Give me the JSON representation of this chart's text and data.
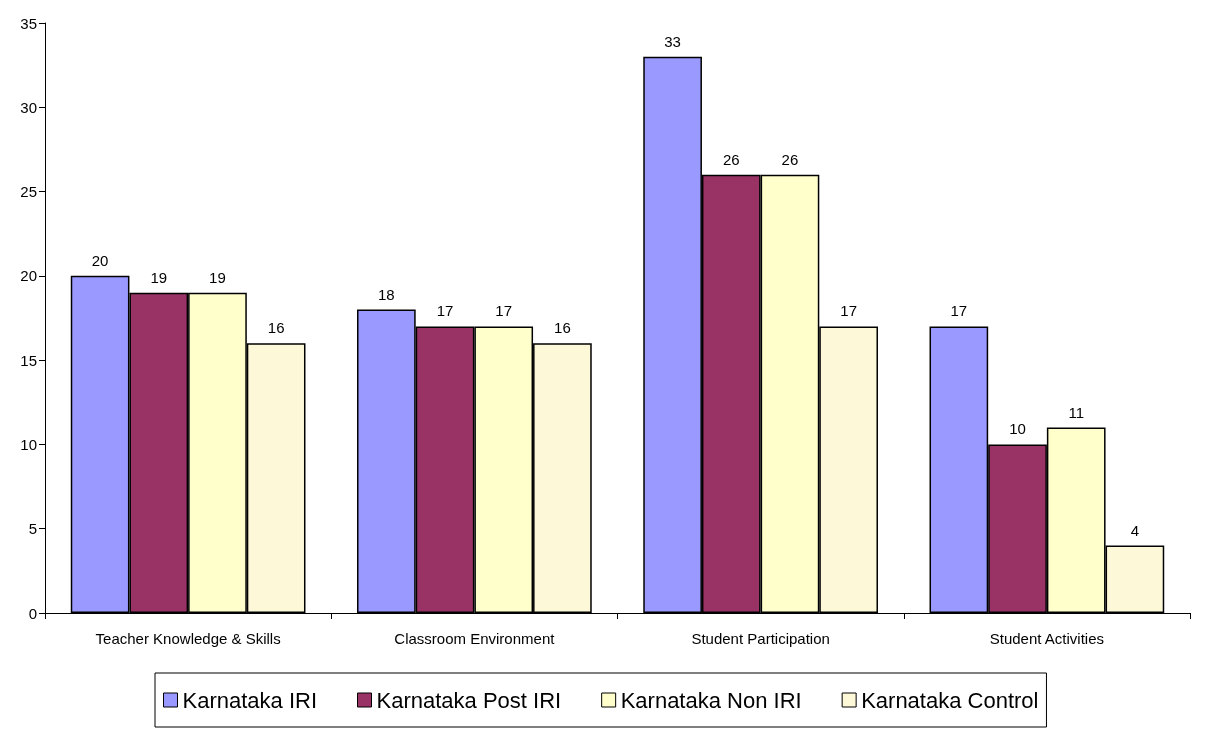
{
  "chart_data": {
    "type": "bar",
    "categories": [
      "Teacher Knowledge & Skills",
      "Classroom Environment",
      "Student Participation",
      "Student Activities"
    ],
    "series": [
      {
        "name": "Karnataka IRI",
        "color": "#9999ff",
        "values": [
          20,
          18,
          33,
          17
        ]
      },
      {
        "name": "Karnataka Post IRI",
        "color": "#993366",
        "values": [
          19,
          17,
          26,
          10
        ]
      },
      {
        "name": "Karnataka Non IRI",
        "color": "#ffffcc",
        "values": [
          19,
          17,
          26,
          11
        ]
      },
      {
        "name": "Karnataka Control",
        "color": "#fdf8d8",
        "values": [
          16,
          16,
          17,
          4
        ]
      }
    ],
    "ylim": [
      0,
      35
    ],
    "yticks": [
      0,
      5,
      10,
      15,
      20,
      25,
      30,
      35
    ],
    "data_labels": true,
    "grid": false,
    "legend": "bottom"
  }
}
